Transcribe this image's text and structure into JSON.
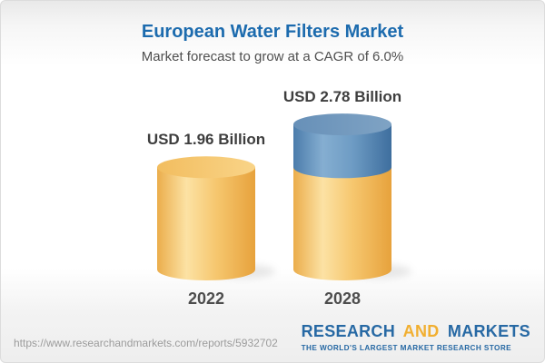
{
  "header": {
    "title": "European Water Filters Market",
    "subtitle": "Market forecast to grow at a CAGR of 6.0%",
    "title_color": "#1c6bae"
  },
  "chart_data": {
    "type": "bar",
    "variant": "3d-cylinder",
    "title": "European Water Filters Market",
    "subtitle": "Market forecast to grow at a CAGR of 6.0%",
    "categories": [
      "2022",
      "2028"
    ],
    "values": [
      1.96,
      2.78
    ],
    "unit": "USD Billion",
    "cagr": "6.0%",
    "data_labels": [
      "USD 1.96 Billion",
      "USD 2.78 Billion"
    ],
    "stacks": [
      [
        {
          "value": 1.96,
          "color": "gold"
        }
      ],
      [
        {
          "value": 1.96,
          "color": "gold"
        },
        {
          "value": 0.82,
          "color": "blue"
        }
      ]
    ],
    "ylim": [
      0,
      3
    ],
    "legend": "none",
    "grid": "off",
    "palette": {
      "gold": {
        "edge": "#ebad4b",
        "light": "#fce2a4",
        "mid": "#f6c76f",
        "dark": "#e7a23c",
        "top_light": "#f9d488",
        "top_dark": "#f2bd5f"
      },
      "blue": {
        "edge": "#4b7cab",
        "light": "#85aed1",
        "mid": "#6e9cc4",
        "dark": "#3e6e9e",
        "top_light": "#7fa3c4",
        "top_dark": "#6790b8"
      }
    }
  },
  "footer": {
    "url": "https://www.researchandmarkets.com/reports/5932702",
    "logo": {
      "word1": "RESEARCH",
      "word2": "AND",
      "word3": "MARKETS",
      "tagline": "THE WORLD'S LARGEST MARKET RESEARCH STORE",
      "blue": "#2769a4",
      "gold": "#f1af31"
    }
  }
}
